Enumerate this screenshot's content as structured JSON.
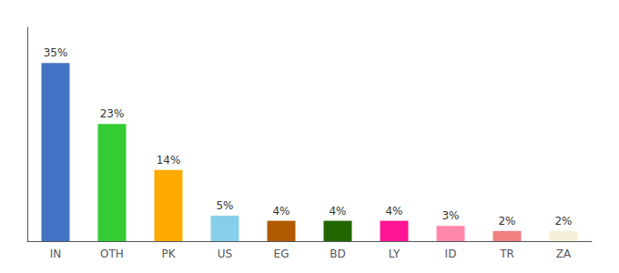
{
  "chart_data": {
    "type": "bar",
    "categories": [
      "IN",
      "OTH",
      "PK",
      "US",
      "EG",
      "BD",
      "LY",
      "ID",
      "TR",
      "ZA"
    ],
    "values": [
      35,
      23,
      14,
      5,
      4,
      4,
      4,
      3,
      2,
      2
    ],
    "value_labels": [
      "35%",
      "23%",
      "14%",
      "5%",
      "4%",
      "4%",
      "4%",
      "3%",
      "2%",
      "2%"
    ],
    "colors": [
      "#4472c4",
      "#33cc33",
      "#ffaa00",
      "#87ceeb",
      "#b05a00",
      "#226600",
      "#ff1493",
      "#ff88aa",
      "#f08080",
      "#f5f0d8"
    ],
    "ylim": [
      0,
      42
    ],
    "grid": false,
    "data_labels": true,
    "tick_labels": "x"
  }
}
